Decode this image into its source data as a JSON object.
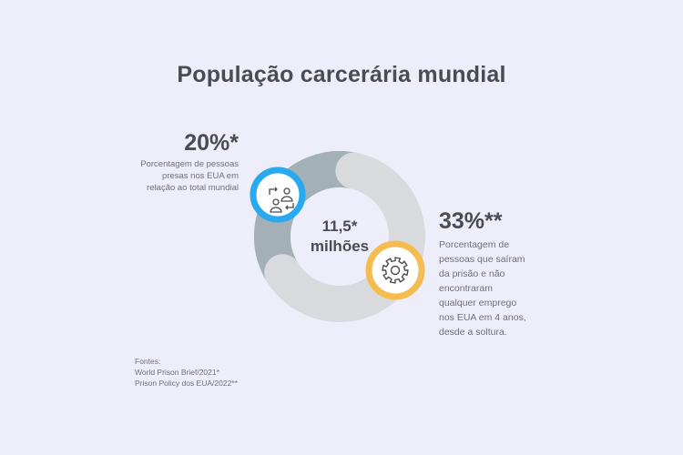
{
  "title": "População carcerária mundial",
  "chart_data": {
    "type": "pie",
    "total_label_lines": [
      "11,5*",
      "milhões"
    ],
    "slices": [
      {
        "label": "20%*",
        "value": 20,
        "color": "#a3b0b6"
      },
      {
        "label": "33%**",
        "value": 33,
        "color": "#d9dade"
      },
      {
        "label": "",
        "value": 47,
        "color": "#d9dade"
      }
    ]
  },
  "stats": {
    "left": {
      "value": "20%*",
      "description": [
        "Porcentagem de pessoas",
        "presas nos EUA em",
        "relação ao total mundial"
      ],
      "icon": "people-exchange-icon",
      "color": "#29a9ef"
    },
    "right": {
      "value": "33%**",
      "description": [
        "Porcentagem de",
        "pessoas que saíram",
        "da prisão e não",
        "encontraram",
        "qualquer emprego",
        "nos EUA em 4 anos,",
        "desde a soltura."
      ],
      "icon": "gear-icon",
      "color": "#f5bd4f"
    }
  },
  "sources": {
    "heading": "Fontes:",
    "lines": [
      "World Prison Brief/2021*",
      "Prison Policy dos EUA/2022**"
    ]
  }
}
